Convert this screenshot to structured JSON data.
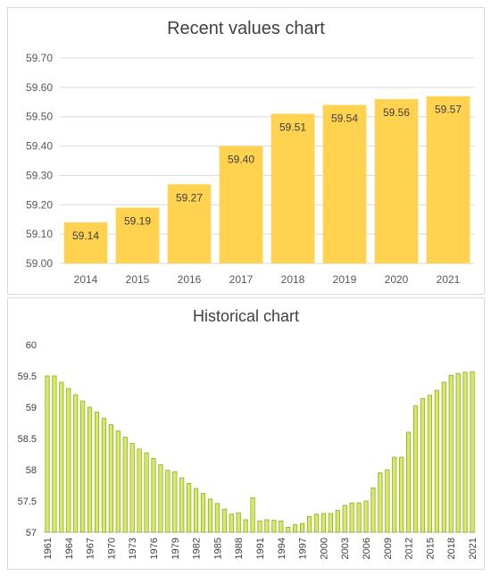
{
  "colors": {
    "recent_bar": "#FFD34F",
    "hist_bar": "#D9E86B",
    "hist_bar_edge": "#8BAE1D",
    "grid": "#D9D9D9",
    "text": "#404040"
  },
  "chart_data": [
    {
      "type": "bar",
      "title": "Recent values chart",
      "categories": [
        "2014",
        "2015",
        "2016",
        "2017",
        "2018",
        "2019",
        "2020",
        "2021"
      ],
      "values": [
        59.14,
        59.19,
        59.27,
        59.4,
        59.51,
        59.54,
        59.56,
        59.57
      ],
      "data_labels": [
        "59.14",
        "59.19",
        "59.27",
        "59.40",
        "59.51",
        "59.54",
        "59.56",
        "59.57"
      ],
      "ylim": [
        59.0,
        59.7
      ],
      "yticks": [
        "59.00",
        "59.10",
        "59.20",
        "59.30",
        "59.40",
        "59.50",
        "59.60",
        "59.70"
      ],
      "grid": true,
      "legend": "none"
    },
    {
      "type": "bar",
      "title": "Historical chart",
      "categories": [
        "1961",
        "1962",
        "1963",
        "1964",
        "1965",
        "1966",
        "1967",
        "1968",
        "1969",
        "1970",
        "1971",
        "1972",
        "1973",
        "1974",
        "1975",
        "1976",
        "1977",
        "1978",
        "1979",
        "1980",
        "1981",
        "1982",
        "1983",
        "1984",
        "1985",
        "1986",
        "1987",
        "1988",
        "1989",
        "1990",
        "1991",
        "1992",
        "1993",
        "1994",
        "1995",
        "1996",
        "1997",
        "1998",
        "1999",
        "2000",
        "2001",
        "2002",
        "2003",
        "2004",
        "2005",
        "2006",
        "2007",
        "2008",
        "2009",
        "2010",
        "2011",
        "2012",
        "2013",
        "2014",
        "2015",
        "2016",
        "2017",
        "2018",
        "2019",
        "2020",
        "2021"
      ],
      "values": [
        59.5,
        59.5,
        59.4,
        59.3,
        59.2,
        59.1,
        59.0,
        58.92,
        58.82,
        58.72,
        58.62,
        58.52,
        58.42,
        58.33,
        58.27,
        58.18,
        58.08,
        57.99,
        57.97,
        57.87,
        57.78,
        57.7,
        57.62,
        57.53,
        57.46,
        57.37,
        57.29,
        57.31,
        57.2,
        57.55,
        57.18,
        57.2,
        57.19,
        57.18,
        57.08,
        57.12,
        57.14,
        57.25,
        57.29,
        57.3,
        57.3,
        57.35,
        57.43,
        57.47,
        57.47,
        57.5,
        57.71,
        57.95,
        58.0,
        58.2,
        58.2,
        58.6,
        59.02,
        59.14,
        59.19,
        59.27,
        59.4,
        59.51,
        59.54,
        59.56,
        59.57
      ],
      "ylim": [
        57,
        60
      ],
      "yticks": [
        "57",
        "57.5",
        "58",
        "58.5",
        "59",
        "59.5",
        "60"
      ],
      "xtick_labels": [
        "1961",
        "1964",
        "1967",
        "1970",
        "1973",
        "1976",
        "1979",
        "1982",
        "1985",
        "1988",
        "1991",
        "1994",
        "1997",
        "2000",
        "2003",
        "2006",
        "2009",
        "2012",
        "2015",
        "2018",
        "2021"
      ],
      "grid": false,
      "legend": "none"
    }
  ]
}
